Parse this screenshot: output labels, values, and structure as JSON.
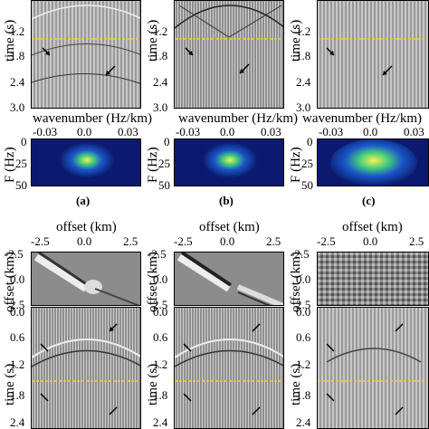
{
  "top_row": {
    "time_axis_label": "time (s)",
    "time_ticks": [
      "1.2",
      "1.8",
      "2.4",
      "3.0"
    ],
    "wavenumber_label": "wavenumber (Hz/km)",
    "wavenumber_ticks": [
      "-0.03",
      "0.0",
      "0.03"
    ],
    "freq_label": "F (Hz)",
    "freq_ticks": [
      "0",
      "25",
      "50"
    ],
    "panels": [
      "(a)",
      "(b)",
      "(c)"
    ]
  },
  "bottom_row": {
    "offset_label": "offset (km)",
    "offset_ticks": [
      "-2.5",
      "0.0",
      "2.5"
    ],
    "offset_depth_label": "offset (km)",
    "offset_depth_ticks": [
      "-2.5",
      "0.0",
      "2.5"
    ],
    "time_axis_label": "time (s)",
    "time_ticks": [
      "0.0",
      "0.6",
      "1.2",
      "1.8",
      "2.4"
    ]
  },
  "colors": {
    "dashed_line": "#f2d21b",
    "spectrum_bg": "#0b1a6e",
    "spectrum_hot": "#ffee55"
  }
}
